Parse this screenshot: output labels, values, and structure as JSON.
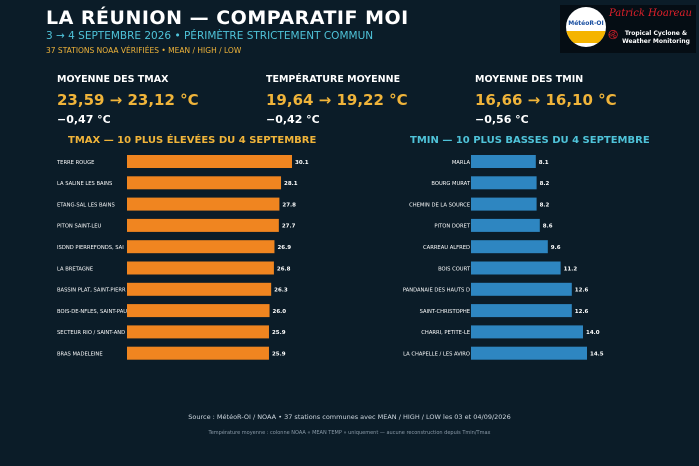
{
  "header": {
    "title": "LA RÉUNION — COMPARATIF MOI",
    "subtitle": "3 → 4 SEPTEMBRE 2026 • PÉRIMÈTRE STRICTEMENT COMMUN",
    "stations_line": "37 STATIONS NOAA VÉRIFIÉES • MEAN / HIGH / LOW"
  },
  "logo": {
    "circle_text": "MétéoR-OI",
    "name": "Patrick Hoareau",
    "tagline_1": "Tropical Cyclone &",
    "tagline_2": "Weather Monitoring"
  },
  "stats": [
    {
      "label": "MOYENNE DES TMAX",
      "value": "23,59 → 23,12 °C",
      "delta": "−0,47 °C"
    },
    {
      "label": "TEMPÉRATURE MOYENNE",
      "value": "19,64 → 19,22 °C",
      "delta": "−0,42 °C"
    },
    {
      "label": "MOYENNE DES TMIN",
      "value": "16,66 → 16,10 °C",
      "delta": "−0,56 °C"
    }
  ],
  "colors": {
    "tmax_bar": "#f08520",
    "tmin_bar": "#2e86c1",
    "tmax_title": "#f0b43a",
    "tmin_title": "#4fc3d9",
    "accent_value": "#f0b43a"
  },
  "chart_data": [
    {
      "type": "bar",
      "orientation": "horizontal",
      "title": "TMAX — 10 PLUS ÉLEVÉES DU 4 SEPTEMBRE",
      "categories": [
        "TERRE ROUGE",
        "LA SALINE LES BAINS",
        "ETANG-SAL LES BAINS",
        "PITON SAINT-LEU",
        "ISDND PIERREFONDS, SAI",
        "LA BRETAGNE",
        "BASSIN PLAT, SAINT-PIERR",
        "BOIS-DE-NFLES, SAINT-PAU",
        "SECTEUR RIO / SAINT-AND",
        "BRAS MADELEINE"
      ],
      "values": [
        30.1,
        28.1,
        27.8,
        27.7,
        26.9,
        26.8,
        26.3,
        26.0,
        25.9,
        25.9
      ],
      "value_labels": [
        "30.1",
        "28.1",
        "27.8",
        "27.7",
        "26.9",
        "26.8",
        "26.3",
        "26.0",
        "25.9",
        "25.9"
      ],
      "grid": false
    },
    {
      "type": "bar",
      "orientation": "horizontal",
      "title": "TMIN — 10 PLUS BASSES DU 4 SEPTEMBRE",
      "categories": [
        "MARLA",
        "BOURG MURAT",
        "CHEMIN DE LA SOURCE",
        "PITON DORET",
        "CARREAU ALFRED",
        "BOIS COURT",
        "PANDANAIE DES HAUTS D",
        "SAINT-CHRISTOPHE",
        "CHARRI, PETITE-LE",
        "LA CHAPELLE / LES AVIRO"
      ],
      "values": [
        8.1,
        8.2,
        8.2,
        8.6,
        9.6,
        11.2,
        12.6,
        12.6,
        14.0,
        14.5
      ],
      "value_labels": [
        "8.1",
        "8.2",
        "8.2",
        "8.6",
        "9.6",
        "11.2",
        "12.6",
        "12.6",
        "14.0",
        "14.5"
      ],
      "grid": false
    }
  ],
  "footer": {
    "source": "Source : MétéoR-OI / NOAA • 37 stations communes avec MEAN / HIGH / LOW les 03 et 04/09/2026",
    "note": "Température moyenne : colonne NOAA « MEAN TEMP » uniquement — aucune reconstruction depuis Tmin/Tmax"
  }
}
